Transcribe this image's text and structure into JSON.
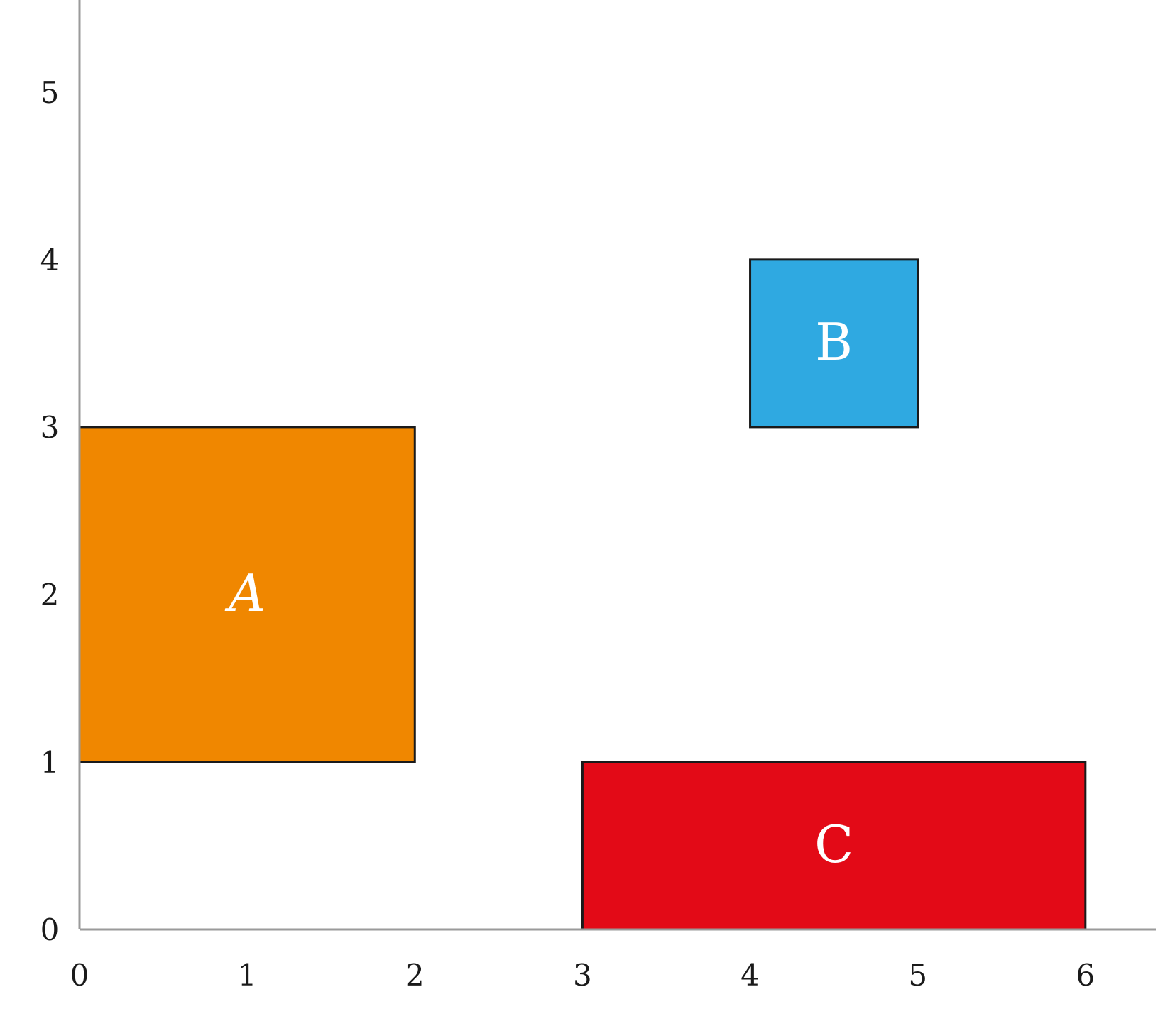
{
  "chart_data": {
    "type": "rect",
    "rects": [
      {
        "label": "A",
        "x": [
          0,
          2
        ],
        "y": [
          1,
          3
        ],
        "color": "#f08700",
        "italic": true
      },
      {
        "label": "B",
        "x": [
          4,
          5
        ],
        "y": [
          3,
          4
        ],
        "color": "#2fa9e1",
        "italic": false
      },
      {
        "label": "C",
        "x": [
          3,
          6
        ],
        "y": [
          0,
          1
        ],
        "color": "#e30a17",
        "italic": false
      }
    ],
    "xlim": [
      0,
      6.42
    ],
    "ylim": [
      0,
      5.55
    ],
    "xticks": [
      0,
      1,
      2,
      3,
      4,
      5,
      6
    ],
    "yticks": [
      0,
      1,
      2,
      3,
      4,
      5
    ],
    "grid": false
  }
}
